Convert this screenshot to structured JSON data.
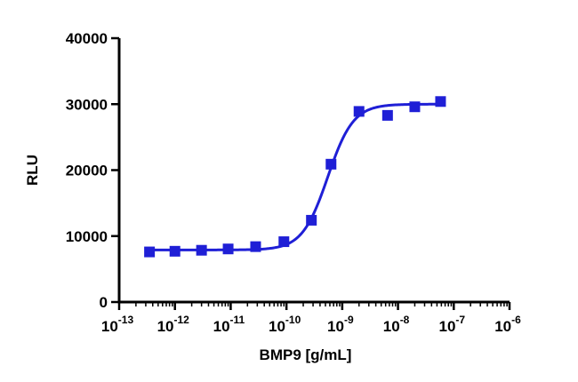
{
  "chart_data": {
    "type": "scatter",
    "xlabel": "BMP9 [g/mL]",
    "ylabel": "RLU",
    "x_scale": "log10",
    "xlim": [
      1e-13,
      1e-06
    ],
    "ylim": [
      0,
      40000
    ],
    "x_ticks": [
      {
        "base": "10",
        "exp": "-13"
      },
      {
        "base": "10",
        "exp": "-12"
      },
      {
        "base": "10",
        "exp": "-11"
      },
      {
        "base": "10",
        "exp": "-10"
      },
      {
        "base": "10",
        "exp": "-9"
      },
      {
        "base": "10",
        "exp": "-8"
      },
      {
        "base": "10",
        "exp": "-7"
      },
      {
        "base": "10",
        "exp": "-6"
      }
    ],
    "y_ticks": [
      "0",
      "10000",
      "20000",
      "30000",
      "40000"
    ],
    "grid": false,
    "legend": "none",
    "series": [
      {
        "color": "#1f1fd6",
        "marker": "square",
        "points": [
          {
            "x": 3.5e-13,
            "y": 7600
          },
          {
            "x": 1e-12,
            "y": 7700
          },
          {
            "x": 3e-12,
            "y": 7850
          },
          {
            "x": 9e-12,
            "y": 8050
          },
          {
            "x": 2.8e-11,
            "y": 8400
          },
          {
            "x": 9e-11,
            "y": 9150
          },
          {
            "x": 2.8e-10,
            "y": 12400
          },
          {
            "x": 6.3e-10,
            "y": 20900
          },
          {
            "x": 2e-09,
            "y": 28900
          },
          {
            "x": 6.5e-09,
            "y": 28300
          },
          {
            "x": 2e-08,
            "y": 29600
          },
          {
            "x": 5.8e-08,
            "y": 30400
          }
        ],
        "fit": {
          "model": "4PL",
          "bottom": 7900,
          "top": 30000,
          "ec50": 5.5e-10,
          "hill": 1.9,
          "x_range": [
            3.5e-13,
            5.8e-08
          ]
        }
      }
    ]
  }
}
